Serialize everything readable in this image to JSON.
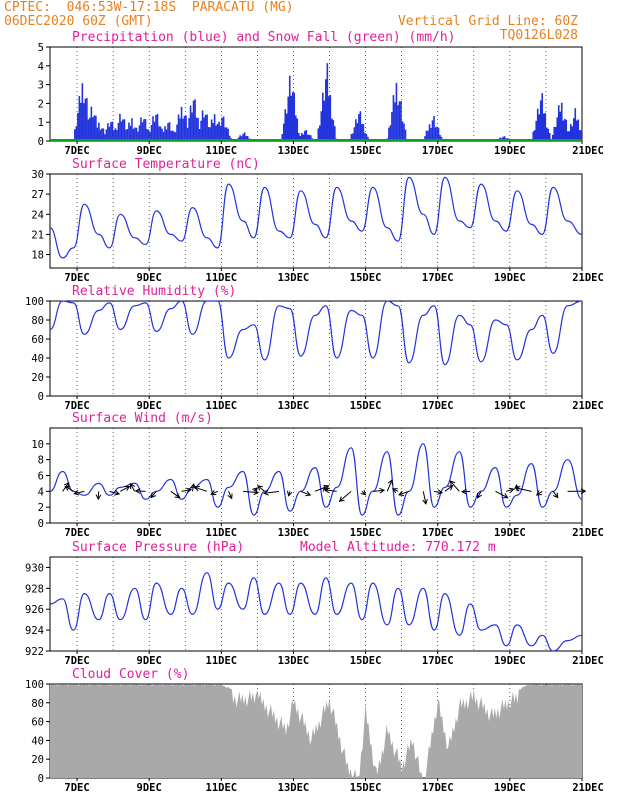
{
  "header": {
    "line1": "CPTEC:  046:53W-17:18S  PARACATU (MG)",
    "line2": "06DEC2020 60Z (GMT)",
    "grid_note": "Vertical Grid Line: 60Z",
    "code": "TQ0126L028"
  },
  "colors": {
    "title": "#e0209a",
    "header": "#e8801e",
    "line": "#2233dd",
    "snow": "#10a020",
    "cloud": "#a9a9a9"
  },
  "x_axis": {
    "ticks": [
      "7DEC",
      "9DEC",
      "11DEC",
      "13DEC",
      "15DEC",
      "17DEC",
      "19DEC",
      "21DEC"
    ]
  },
  "panels": {
    "precip": {
      "title": "Precipitation (blue) and Snow Fall (green) (mm/h)"
    },
    "temp": {
      "title": "Surface Temperature (nC)"
    },
    "rh": {
      "title": "Relative Humidity (%)"
    },
    "wind": {
      "title": "Surface Wind (m/s)"
    },
    "pressure": {
      "title": "Surface Pressure (hPa)",
      "altitude": "Model Altitude: 770.172 m"
    },
    "cloud": {
      "title": "Cloud Cover (%)"
    }
  },
  "chart_data": [
    {
      "type": "bar",
      "panel": "precip",
      "title": "Precipitation (blue) and Snow Fall (green) (mm/h)",
      "ylim": [
        0,
        5
      ],
      "yticks": [
        0,
        1,
        2,
        3,
        4,
        5
      ],
      "xdomain_days": [
        6.25,
        21.0
      ],
      "peaks": [
        [
          7.15,
          3.9
        ],
        [
          7.4,
          2.1
        ],
        [
          7.6,
          1.2
        ],
        [
          7.9,
          1.3
        ],
        [
          8.2,
          1.8
        ],
        [
          8.5,
          1.4
        ],
        [
          8.8,
          1.6
        ],
        [
          9.15,
          1.9
        ],
        [
          9.5,
          1.3
        ],
        [
          9.9,
          2.3
        ],
        [
          10.2,
          2.7
        ],
        [
          10.5,
          2.1
        ],
        [
          10.8,
          1.7
        ],
        [
          11.0,
          1.6
        ],
        [
          11.6,
          0.5
        ],
        [
          12.9,
          4.0
        ],
        [
          13.3,
          0.7
        ],
        [
          13.9,
          4.4
        ],
        [
          14.8,
          1.8
        ],
        [
          15.85,
          3.8
        ],
        [
          16.85,
          1.6
        ],
        [
          18.8,
          0.3
        ],
        [
          19.85,
          2.8
        ],
        [
          20.4,
          2.5
        ],
        [
          20.8,
          1.8
        ]
      ],
      "snow": [
        [
          6.25,
          0.05
        ],
        [
          21.0,
          0.05
        ]
      ]
    },
    {
      "type": "line",
      "panel": "temp",
      "title": "Surface Temperature (nC)",
      "ylim": [
        16,
        30
      ],
      "yticks": [
        18,
        21,
        24,
        27,
        30
      ],
      "x": [
        6.25,
        6.6,
        6.9,
        7.2,
        7.6,
        7.9,
        8.2,
        8.6,
        8.9,
        9.2,
        9.6,
        9.9,
        10.2,
        10.6,
        10.9,
        11.2,
        11.6,
        11.9,
        12.2,
        12.6,
        12.9,
        13.2,
        13.6,
        13.9,
        14.2,
        14.6,
        14.9,
        15.2,
        15.6,
        15.9,
        16.2,
        16.6,
        16.9,
        17.2,
        17.6,
        17.9,
        18.2,
        18.6,
        18.9,
        19.2,
        19.6,
        19.9,
        20.2,
        20.6,
        21.0
      ],
      "values": [
        22,
        17.5,
        19,
        25.5,
        21,
        19,
        24,
        20.5,
        19.5,
        24.5,
        21,
        20,
        25,
        20.5,
        19,
        28.5,
        23,
        20.5,
        28,
        21.5,
        20.5,
        27.5,
        22.5,
        20.5,
        28,
        23,
        21.5,
        28,
        22,
        20,
        29.5,
        24,
        21,
        29.5,
        23,
        22,
        28.5,
        23,
        21.5,
        27.5,
        22.5,
        21,
        28,
        23,
        21
      ]
    },
    {
      "type": "line",
      "panel": "rh",
      "title": "Relative Humidity (%)",
      "ylim": [
        0,
        100
      ],
      "yticks": [
        0,
        20,
        40,
        60,
        80,
        100
      ],
      "x": [
        6.25,
        6.6,
        6.9,
        7.2,
        7.6,
        7.9,
        8.2,
        8.6,
        8.9,
        9.2,
        9.6,
        9.9,
        10.2,
        10.6,
        10.9,
        11.2,
        11.6,
        11.9,
        12.2,
        12.6,
        12.9,
        13.2,
        13.6,
        13.9,
        14.2,
        14.6,
        14.9,
        15.2,
        15.6,
        15.9,
        16.2,
        16.6,
        16.9,
        17.2,
        17.6,
        17.9,
        18.2,
        18.6,
        18.9,
        19.2,
        19.6,
        19.9,
        20.2,
        20.6,
        21.0
      ],
      "values": [
        70,
        100,
        98,
        65,
        90,
        98,
        70,
        95,
        98,
        68,
        92,
        100,
        65,
        100,
        100,
        40,
        70,
        75,
        38,
        95,
        92,
        42,
        85,
        95,
        40,
        90,
        85,
        40,
        100,
        95,
        35,
        85,
        95,
        33,
        85,
        75,
        36,
        80,
        75,
        38,
        70,
        85,
        45,
        95,
        100
      ]
    },
    {
      "type": "line",
      "panel": "wind",
      "title": "Surface Wind (m/s)",
      "ylim": [
        0,
        12
      ],
      "yticks": [
        0,
        2,
        4,
        6,
        8,
        10
      ],
      "x": [
        6.25,
        6.6,
        6.9,
        7.2,
        7.6,
        7.9,
        8.2,
        8.6,
        8.9,
        9.2,
        9.6,
        9.9,
        10.2,
        10.6,
        10.9,
        11.2,
        11.6,
        11.9,
        12.2,
        12.6,
        12.9,
        13.2,
        13.6,
        13.9,
        14.2,
        14.6,
        14.9,
        15.2,
        15.6,
        15.9,
        16.2,
        16.6,
        16.9,
        17.2,
        17.6,
        17.9,
        18.2,
        18.6,
        18.9,
        19.2,
        19.6,
        19.9,
        20.2,
        20.6,
        21.0
      ],
      "values": [
        4,
        6.5,
        4,
        3.5,
        5,
        3.5,
        4.5,
        5,
        3,
        4,
        5.5,
        3,
        4.5,
        5.5,
        2,
        4.5,
        6.5,
        1,
        4,
        6.5,
        1.5,
        4,
        7,
        2,
        4.5,
        9.5,
        1,
        4,
        9,
        1,
        4,
        10,
        2,
        4.5,
        9,
        2,
        4,
        7,
        2,
        3.5,
        7.5,
        2,
        4,
        8,
        3
      ]
    },
    {
      "type": "line",
      "panel": "pressure",
      "title": "Surface Pressure (hPa)",
      "ylim": [
        922,
        931
      ],
      "yticks": [
        922,
        924,
        926,
        928,
        930
      ],
      "x": [
        6.25,
        6.6,
        6.9,
        7.2,
        7.6,
        7.9,
        8.2,
        8.6,
        8.9,
        9.2,
        9.6,
        9.9,
        10.2,
        10.6,
        10.9,
        11.2,
        11.6,
        11.9,
        12.2,
        12.6,
        12.9,
        13.2,
        13.6,
        13.9,
        14.2,
        14.6,
        14.9,
        15.2,
        15.6,
        15.9,
        16.2,
        16.6,
        16.9,
        17.2,
        17.6,
        17.9,
        18.2,
        18.6,
        18.9,
        19.2,
        19.6,
        19.9,
        20.2,
        20.6,
        21.0
      ],
      "values": [
        926.5,
        927,
        924,
        927.5,
        925,
        927.5,
        925,
        928,
        925,
        928.5,
        925.5,
        928,
        925.5,
        929.5,
        926,
        928.5,
        926,
        929,
        925.5,
        928.5,
        925.5,
        928.5,
        925.5,
        929,
        925.5,
        928.5,
        925,
        928.5,
        924.5,
        928,
        924.5,
        928,
        924,
        927.5,
        923.5,
        926.5,
        924,
        924.5,
        922.5,
        924.5,
        922.5,
        923.5,
        922,
        923,
        923.5
      ]
    },
    {
      "type": "area",
      "panel": "cloud",
      "title": "Cloud Cover (%)",
      "ylim": [
        0,
        100
      ],
      "yticks": [
        0,
        20,
        40,
        60,
        80,
        100
      ],
      "x": [
        6.25,
        7.0,
        8.0,
        9.0,
        10.0,
        11.0,
        11.5,
        12.0,
        12.8,
        13.0,
        13.5,
        14.0,
        14.5,
        14.8,
        15.0,
        15.3,
        15.6,
        16.0,
        16.3,
        16.6,
        17.0,
        17.3,
        17.6,
        18.0,
        18.5,
        19.0,
        19.5,
        20.0,
        21.0
      ],
      "values": [
        100,
        100,
        100,
        100,
        100,
        100,
        92,
        95,
        60,
        90,
        50,
        92,
        20,
        5,
        80,
        10,
        60,
        20,
        50,
        0,
        90,
        40,
        85,
        95,
        75,
        90,
        100,
        100,
        100
      ]
    }
  ]
}
